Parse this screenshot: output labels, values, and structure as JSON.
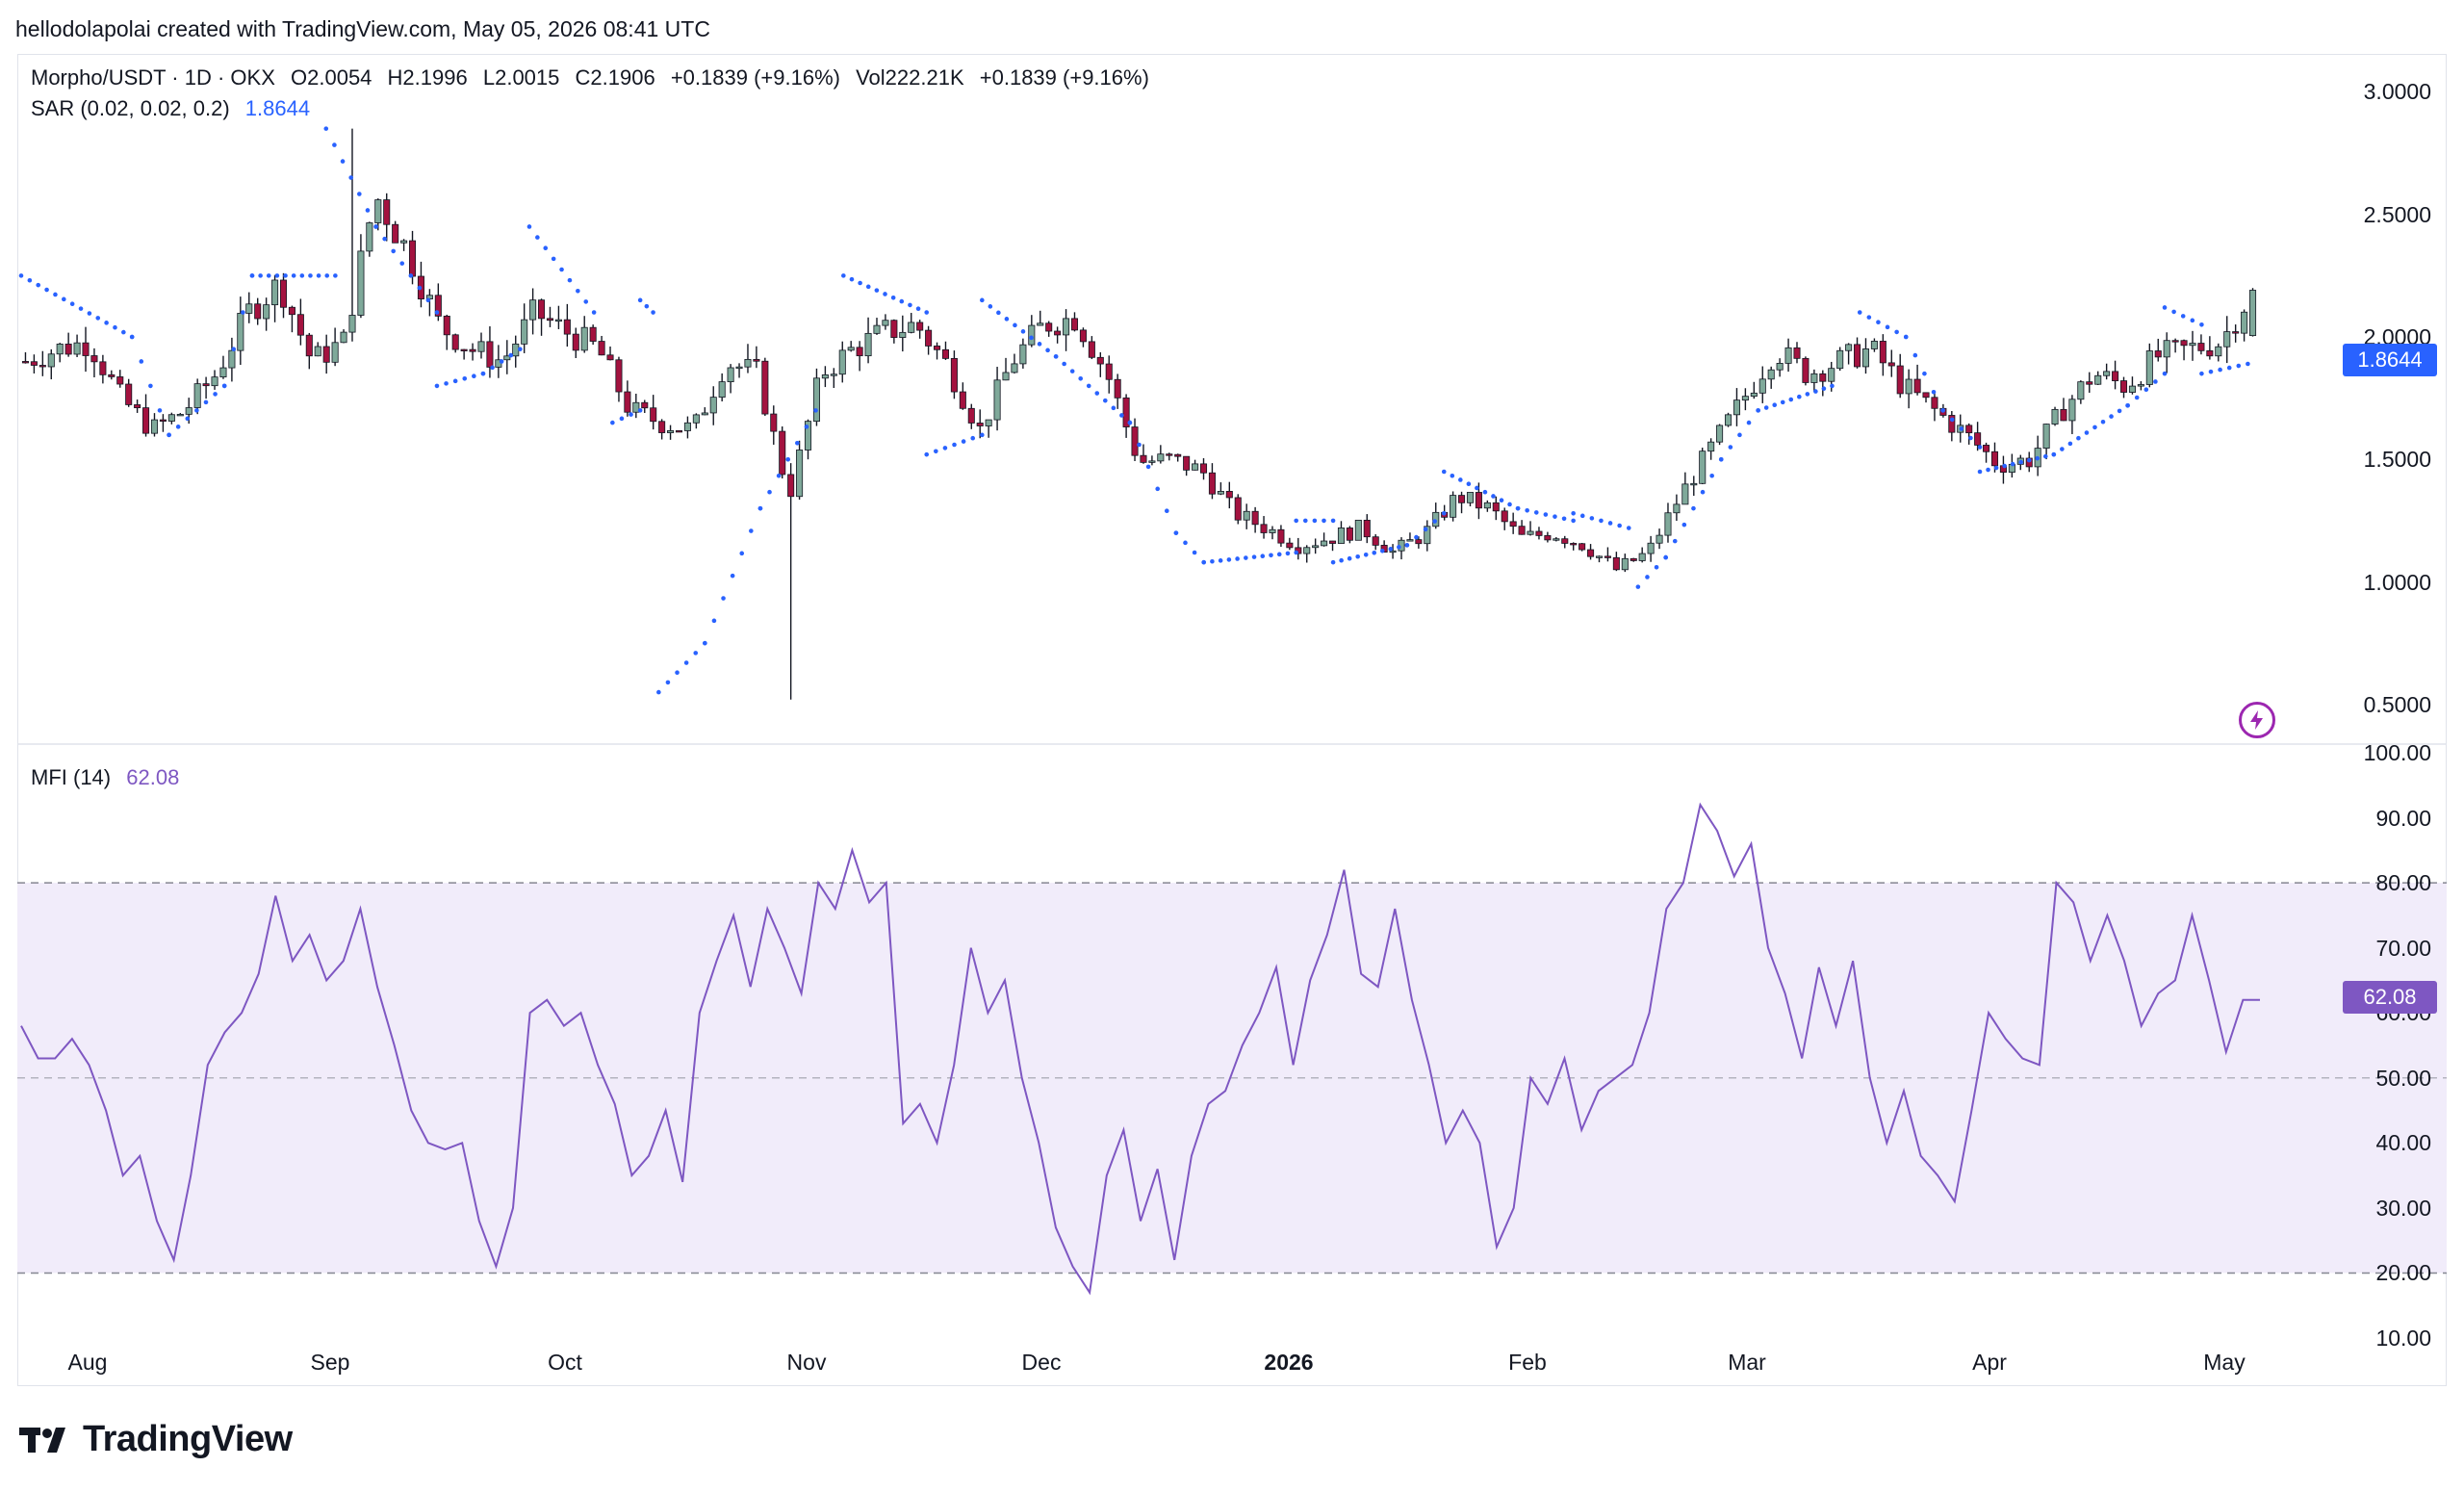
{
  "header": {
    "caption": "hellodolapolai created with TradingView.com, May 05, 2026 08:41 UTC"
  },
  "legend": {
    "symbol": "Morpho/USDT · 1D · OKX",
    "open": "O2.0054",
    "high": "H2.1996",
    "low": "L2.0015",
    "close": "C2.1906",
    "change": "+0.1839 (+9.16%)",
    "volume": "Vol222.21K",
    "volume_change": "+0.1839 (+9.16%)",
    "sar_label": "SAR (0.02, 0.02, 0.2)",
    "sar_value": "1.8644",
    "mfi_label": "MFI (14)",
    "mfi_value": "62.08"
  },
  "price_tag": {
    "sar": "1.8644",
    "mfi": "62.08"
  },
  "brand": {
    "name": "TradingView"
  },
  "colors": {
    "up": "#7fa99a",
    "down": "#a3123f",
    "sar": "#2962ff",
    "mfi": "#7e57c2",
    "mfi_band": "#f1ecfa"
  },
  "chart_data": [
    {
      "type": "candlestick",
      "name": "Morpho/USDT",
      "ylim": [
        0.35,
        3.1
      ],
      "yticks": [
        "3.0000",
        "2.5000",
        "2.0000",
        "1.5000",
        "1.0000",
        "0.5000"
      ],
      "x_months": [
        "Aug",
        "Sep",
        "Oct",
        "Nov",
        "Dec",
        "2026",
        "Feb",
        "Mar",
        "Apr",
        "May"
      ],
      "close_path": [
        1.9,
        1.95,
        1.98,
        1.75,
        1.62,
        1.7,
        1.85,
        2.1,
        2.22,
        1.9,
        1.98,
        2.58,
        2.35,
        2.05,
        1.95,
        1.9,
        2.1,
        2.02,
        1.95,
        1.7,
        1.65,
        1.62,
        1.9,
        1.85,
        1.35,
        1.85,
        1.95,
        2.02,
        2.05,
        1.88,
        1.62,
        1.9,
        2.05,
        2.08,
        1.85,
        1.49,
        1.5,
        1.45,
        1.28,
        1.22,
        1.15,
        1.18,
        1.22,
        1.12,
        1.2,
        1.35,
        1.3,
        1.18,
        1.2,
        1.15,
        1.05,
        1.12,
        1.35,
        1.55,
        1.75,
        1.95,
        1.85,
        1.9,
        1.95,
        1.8,
        1.7,
        1.6,
        1.48,
        1.5,
        1.7,
        1.85,
        1.8,
        1.92,
        1.95,
        1.98,
        2.19
      ]
    },
    {
      "type": "line",
      "name": "SAR (0.02, 0.02, 0.2)",
      "segments": [
        [
          [
            0.0,
            2.25
          ],
          [
            0.06,
            2.0
          ],
          [
            0.08,
            1.6
          ],
          [
            0.11,
            1.8
          ],
          [
            0.125,
            2.25
          ]
        ],
        [
          [
            0.125,
            2.25
          ],
          [
            0.17,
            2.25
          ]
        ],
        [
          [
            0.165,
            2.85
          ],
          [
            0.192,
            2.45
          ],
          [
            0.225,
            2.1
          ]
        ],
        [
          [
            0.225,
            1.8
          ],
          [
            0.25,
            1.85
          ],
          [
            0.27,
            1.95
          ]
        ],
        [
          [
            0.275,
            2.45
          ],
          [
            0.31,
            2.1
          ]
        ],
        [
          [
            0.32,
            1.65
          ],
          [
            0.335,
            1.7
          ]
        ],
        [
          [
            0.335,
            2.15
          ],
          [
            0.342,
            2.1
          ]
        ],
        [
          [
            0.345,
            0.55
          ],
          [
            0.37,
            0.75
          ],
          [
            0.4,
            1.3
          ],
          [
            0.43,
            1.7
          ]
        ],
        [
          [
            0.445,
            2.25
          ],
          [
            0.49,
            2.1
          ]
        ],
        [
          [
            0.49,
            1.52
          ],
          [
            0.52,
            1.6
          ]
        ],
        [
          [
            0.52,
            2.15
          ],
          [
            0.56,
            1.92
          ],
          [
            0.6,
            1.65
          ],
          [
            0.625,
            1.2
          ],
          [
            0.64,
            1.08
          ]
        ],
        [
          [
            0.64,
            1.08
          ],
          [
            0.69,
            1.12
          ]
        ],
        [
          [
            0.69,
            1.25
          ],
          [
            0.71,
            1.25
          ]
        ],
        [
          [
            0.71,
            1.08
          ],
          [
            0.75,
            1.15
          ],
          [
            0.77,
            1.28
          ]
        ],
        [
          [
            0.77,
            1.45
          ],
          [
            0.81,
            1.3
          ],
          [
            0.84,
            1.25
          ]
        ],
        [
          [
            0.84,
            1.28
          ],
          [
            0.87,
            1.22
          ]
        ],
        [
          [
            0.875,
            0.98
          ],
          [
            0.89,
            1.1
          ],
          [
            0.92,
            1.5
          ],
          [
            0.94,
            1.7
          ]
        ],
        [
          [
            0.94,
            1.7
          ],
          [
            0.98,
            1.8
          ]
        ],
        [
          [
            0.995,
            2.1
          ],
          [
            1.02,
            2.0
          ],
          [
            1.04,
            1.7
          ],
          [
            1.06,
            1.55
          ]
        ],
        [
          [
            1.06,
            1.45
          ],
          [
            1.1,
            1.52
          ],
          [
            1.14,
            1.72
          ],
          [
            1.16,
            1.85
          ]
        ],
        [
          [
            1.16,
            2.12
          ],
          [
            1.18,
            2.05
          ]
        ],
        [
          [
            1.18,
            1.85
          ],
          [
            1.205,
            1.89
          ]
        ]
      ]
    },
    {
      "type": "line",
      "name": "MFI (14)",
      "ylim": [
        10,
        100
      ],
      "yticks": [
        "100.00",
        "90.00",
        "80.00",
        "70.00",
        "60.00",
        "50.00",
        "40.00",
        "30.00",
        "20.00",
        "10.00"
      ],
      "bands": [
        20,
        50,
        80
      ],
      "values": [
        58,
        53,
        53,
        56,
        52,
        45,
        35,
        38,
        28,
        22,
        35,
        52,
        57,
        60,
        66,
        78,
        68,
        72,
        65,
        68,
        76,
        64,
        55,
        45,
        40,
        39,
        40,
        28,
        21,
        30,
        60,
        62,
        58,
        60,
        52,
        46,
        35,
        38,
        45,
        34,
        60,
        68,
        75,
        64,
        76,
        70,
        63,
        80,
        76,
        85,
        77,
        80,
        43,
        46,
        40,
        52,
        70,
        60,
        65,
        50,
        40,
        27,
        21,
        17,
        35,
        42,
        28,
        36,
        22,
        38,
        46,
        48,
        55,
        60,
        67,
        52,
        65,
        72,
        82,
        66,
        64,
        76,
        62,
        52,
        40,
        45,
        40,
        24,
        30,
        50,
        46,
        53,
        42,
        48,
        50,
        52,
        60,
        76,
        80,
        92,
        88,
        81,
        86,
        70,
        63,
        53,
        67,
        58,
        68,
        50,
        40,
        48,
        38,
        35,
        31,
        45,
        60,
        56,
        53,
        52,
        80,
        77,
        68,
        75,
        68,
        58,
        63,
        65,
        75,
        65,
        54,
        62,
        62
      ]
    }
  ]
}
